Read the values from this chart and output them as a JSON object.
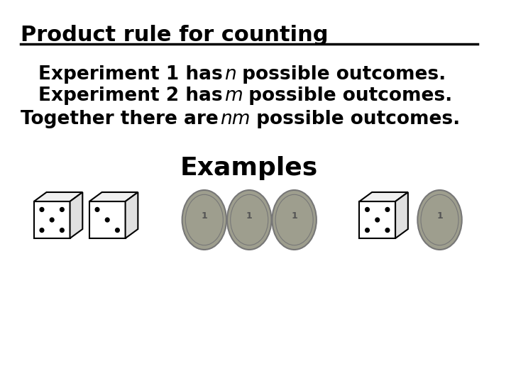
{
  "title": "Product rule for counting",
  "line1_parts": [
    "Experiment 1 has ",
    "n",
    " possible outcomes."
  ],
  "line2_parts": [
    "Experiment 2 has ",
    "m",
    " possible outcomes."
  ],
  "line3_parts": [
    "Together there are ",
    "nm",
    " possible outcomes."
  ],
  "examples_label": "Examples",
  "bg_color": "#ffffff",
  "title_fontsize": 22,
  "body_fontsize": 19,
  "examples_fontsize": 26,
  "title_color": "#000000",
  "body_color": "#000000",
  "italic_color": "#000000",
  "line_color": "#000000",
  "coin_color": "#9e9e8e",
  "coin_edge_color": "#777777"
}
